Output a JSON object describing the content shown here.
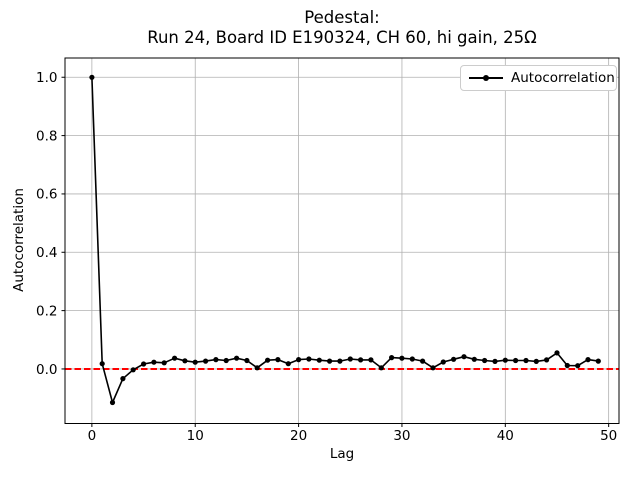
{
  "figure": {
    "title_line1": "Pedestal:",
    "title_line2": "Run 24, Board ID E190324, CH 60, hi gain, 25Ω",
    "background": "#ffffff"
  },
  "chart_data": {
    "type": "line",
    "title": "Pedestal:\nRun 24, Board ID E190324, CH 60, hi gain, 25Ω",
    "xlabel": "Lag",
    "ylabel": "Autocorrelation",
    "grid": true,
    "grid_color": "#b0b0b0",
    "axes_color": "#000000",
    "xlim": [
      -2.6,
      51.0
    ],
    "ylim": [
      -0.187,
      1.066
    ],
    "x_ticks": [
      0,
      10,
      20,
      30,
      40,
      50
    ],
    "y_ticks": [
      0.0,
      0.2,
      0.4,
      0.6,
      0.8,
      1.0
    ],
    "legend": {
      "position": "upper right",
      "entries": [
        "Autocorrelation"
      ]
    },
    "series": [
      {
        "name": "Autocorrelation",
        "color": "#000000",
        "marker": "dot",
        "x": [
          0,
          1,
          2,
          3,
          4,
          5,
          6,
          7,
          8,
          9,
          10,
          11,
          12,
          13,
          14,
          15,
          16,
          17,
          18,
          19,
          20,
          21,
          22,
          23,
          24,
          25,
          26,
          27,
          28,
          29,
          30,
          31,
          32,
          33,
          34,
          35,
          36,
          37,
          38,
          39,
          40,
          41,
          42,
          43,
          44,
          45,
          46,
          47,
          48,
          49
        ],
        "y": [
          1.0,
          0.018,
          -0.115,
          -0.033,
          -0.003,
          0.017,
          0.023,
          0.021,
          0.037,
          0.028,
          0.023,
          0.027,
          0.032,
          0.029,
          0.037,
          0.029,
          0.004,
          0.03,
          0.032,
          0.018,
          0.032,
          0.034,
          0.03,
          0.027,
          0.027,
          0.034,
          0.031,
          0.031,
          0.004,
          0.039,
          0.037,
          0.034,
          0.027,
          0.004,
          0.024,
          0.033,
          0.042,
          0.033,
          0.029,
          0.026,
          0.03,
          0.029,
          0.029,
          0.026,
          0.031,
          0.055,
          0.012,
          0.011,
          0.032,
          0.027
        ]
      }
    ],
    "reference_lines": [
      {
        "y": 0.0,
        "color": "#ff0000",
        "style": "dashed",
        "name": "zero-line"
      }
    ]
  }
}
